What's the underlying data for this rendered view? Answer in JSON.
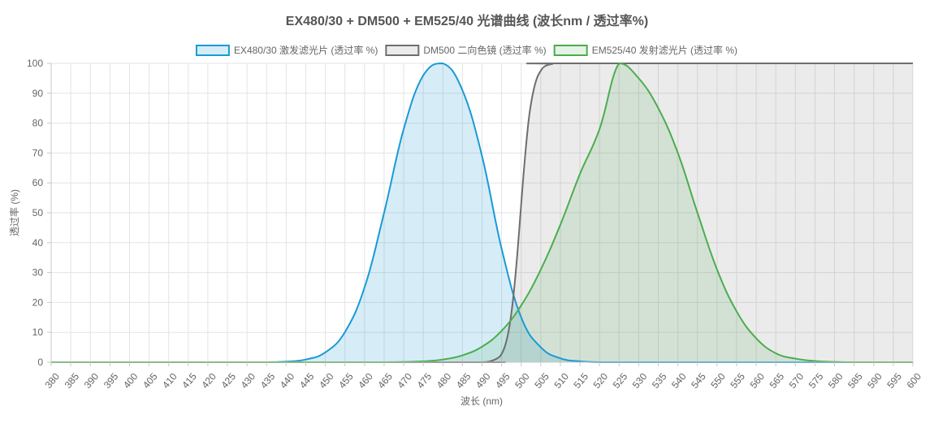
{
  "chart_data": {
    "type": "area",
    "title": "EX480/30 + DM500 + EM525/40 光谱曲线 (波长nm / 透过率%)",
    "xlabel": "波长 (nm)",
    "ylabel": "透过率 (%)",
    "xlim": [
      380,
      600
    ],
    "ylim": [
      0,
      100
    ],
    "x_ticks": [
      380,
      385,
      390,
      395,
      400,
      405,
      410,
      415,
      420,
      425,
      430,
      435,
      440,
      445,
      450,
      455,
      460,
      465,
      470,
      475,
      480,
      485,
      490,
      495,
      500,
      505,
      510,
      515,
      520,
      525,
      530,
      535,
      540,
      545,
      550,
      555,
      560,
      565,
      570,
      575,
      580,
      585,
      590,
      595,
      600
    ],
    "y_ticks": [
      0,
      10,
      20,
      30,
      40,
      50,
      60,
      70,
      80,
      90,
      100
    ],
    "grid": true,
    "legend_position": "top",
    "series": [
      {
        "name": "EX480/30 激发滤光片 (透过率 %)",
        "color": "#1a9ad6",
        "fill": "rgba(26,154,214,0.18)",
        "x": [
          380,
          385,
          390,
          395,
          400,
          405,
          410,
          415,
          420,
          425,
          430,
          435,
          440,
          445,
          450,
          455,
          460,
          465,
          470,
          475,
          480,
          485,
          490,
          495,
          500,
          505,
          510,
          515,
          520,
          525,
          530,
          535,
          540,
          545,
          550,
          555,
          560,
          565,
          570,
          575,
          580,
          585,
          590,
          595,
          600
        ],
        "values": [
          0,
          0,
          0,
          0,
          0,
          0,
          0,
          0,
          0,
          0,
          0,
          0,
          0.2,
          0.9,
          3.3,
          10.1,
          25,
          50,
          78,
          96,
          100,
          91,
          69,
          38,
          15,
          5,
          1.3,
          0.3,
          0,
          0,
          0,
          0,
          0,
          0,
          0,
          0,
          0,
          0,
          0,
          0,
          0,
          0,
          0,
          0,
          0
        ]
      },
      {
        "name": "DM500 二向色镜 (透过率 %)",
        "color": "#6e6e6e",
        "fill": "rgba(110,110,110,0.14)",
        "x": [
          380,
          485,
          490,
          492,
          494,
          495,
          496,
          497,
          498,
          499,
          500,
          501,
          502,
          503,
          504,
          505,
          506,
          508,
          510,
          600
        ],
        "values": [
          0,
          0,
          0,
          0.3,
          1.4,
          2.8,
          6,
          12,
          22,
          36,
          53,
          69,
          82,
          90,
          95,
          97.5,
          99,
          99.8,
          100,
          100
        ]
      },
      {
        "name": "EM525/40 发射滤光片 (透过率 %)",
        "color": "#4aad4e",
        "fill": "rgba(74,173,78,0.14)",
        "x": [
          380,
          385,
          390,
          395,
          400,
          405,
          410,
          415,
          420,
          425,
          430,
          435,
          440,
          445,
          450,
          455,
          460,
          465,
          470,
          475,
          480,
          485,
          490,
          495,
          500,
          505,
          510,
          515,
          520,
          525,
          530,
          535,
          540,
          545,
          550,
          555,
          560,
          565,
          570,
          575,
          580,
          585,
          590,
          595,
          600
        ],
        "values": [
          0,
          0,
          0,
          0,
          0,
          0,
          0,
          0,
          0,
          0,
          0,
          0,
          0,
          0,
          0,
          0,
          0,
          0,
          0.1,
          0.3,
          0.9,
          2.3,
          5.2,
          10.5,
          19,
          31,
          46,
          63,
          78,
          100,
          95,
          85,
          70,
          50,
          31,
          17,
          8,
          3,
          1.2,
          0.4,
          0.1,
          0,
          0,
          0,
          0
        ]
      }
    ]
  }
}
